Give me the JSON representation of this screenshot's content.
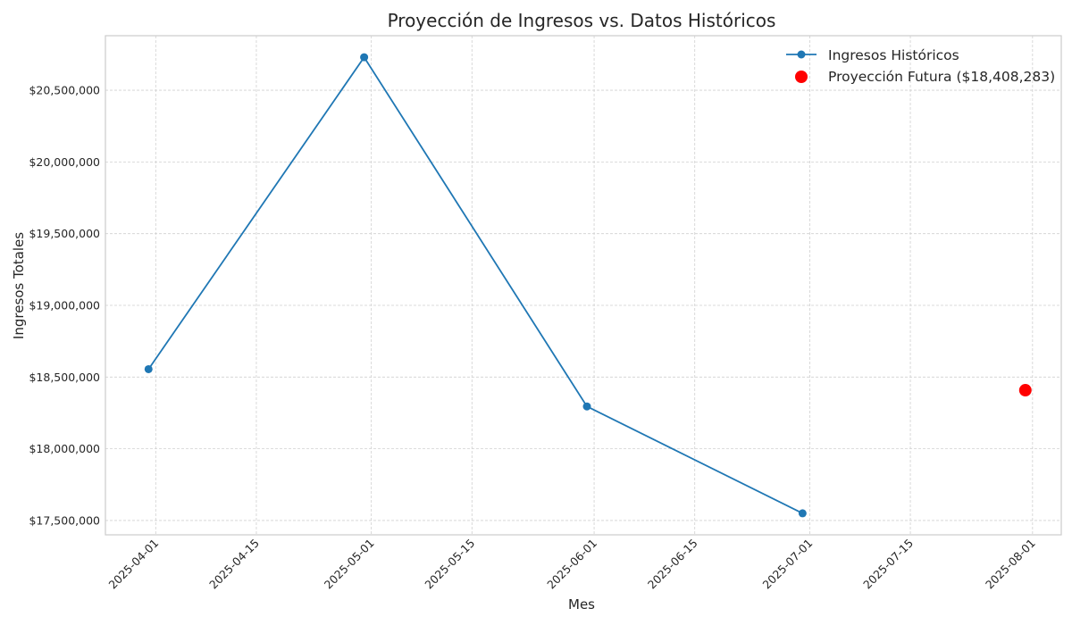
{
  "chart_data": {
    "type": "line",
    "title": "Proyección de Ingresos vs. Datos Históricos",
    "xlabel": "Mes",
    "ylabel": "Ingresos Totales",
    "x_axis": {
      "type": "date",
      "range": [
        "2025-03-25",
        "2025-08-05"
      ],
      "ticks": [
        "2025-04-01",
        "2025-04-15",
        "2025-05-01",
        "2025-05-15",
        "2025-06-01",
        "2025-06-15",
        "2025-07-01",
        "2025-07-15",
        "2025-08-01"
      ]
    },
    "y_axis": {
      "range": [
        17400000,
        20880000
      ],
      "ticks": [
        {
          "value": 17500000,
          "label": "$17,500,000"
        },
        {
          "value": 18000000,
          "label": "$18,000,000"
        },
        {
          "value": 18500000,
          "label": "$18,500,000"
        },
        {
          "value": 19000000,
          "label": "$19,000,000"
        },
        {
          "value": 19500000,
          "label": "$19,500,000"
        },
        {
          "value": 20000000,
          "label": "$20,000,000"
        },
        {
          "value": 20500000,
          "label": "$20,500,000"
        }
      ]
    },
    "grid": true,
    "legend_position": "top-right",
    "series": [
      {
        "name": "Ingresos Históricos",
        "type": "line",
        "marker": "circle",
        "color": "#1f77b4",
        "points": [
          {
            "x": "2025-03-31",
            "y": 18555000
          },
          {
            "x": "2025-04-30",
            "y": 20730000
          },
          {
            "x": "2025-05-31",
            "y": 18295000
          },
          {
            "x": "2025-06-30",
            "y": 17550000
          }
        ]
      },
      {
        "name": "Proyección Futura ($18,408,283)",
        "type": "scatter",
        "marker": "circle",
        "color": "#ff0000",
        "points": [
          {
            "x": "2025-07-31",
            "y": 18408283
          }
        ]
      }
    ]
  }
}
